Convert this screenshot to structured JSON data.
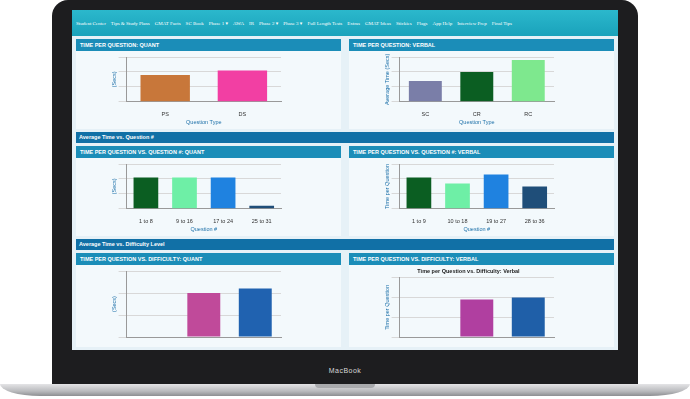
{
  "device": "MacBook",
  "nav": [
    "Student Center",
    "Tips & Study Plans",
    "GMAT Facts",
    "SC Book",
    "Phase 1 ▾",
    "AWA",
    "IR",
    "Phase 2 ▾",
    "Phase 3 ▾",
    "Full Length Tests",
    "Extras",
    "GMAT Ideas",
    "Stickies",
    "Flags",
    "App Help",
    "Interview Prep",
    "Final Tips"
  ],
  "sections": [
    "Average Time vs. Question #",
    "Average Time vs. Difficulty Level"
  ],
  "chart_data": [
    {
      "type": "bar",
      "title": "TIME PER QUESTION: QUANT",
      "x_label": "Question Type",
      "y_label": "(Secs)",
      "categories": [
        "PS",
        "DS"
      ],
      "values": [
        90,
        105
      ],
      "colors": [
        "#c8773a",
        "#f23fa3"
      ],
      "ylim": [
        0,
        150
      ],
      "yticks": [
        0,
        50,
        100,
        150
      ],
      "grid": true,
      "tick_labels": "x"
    },
    {
      "type": "bar",
      "title": "TIME PER QUESTION: VERBAL",
      "x_label": "Question Type",
      "y_label": "Average Time (Secs)",
      "categories": [
        "SC",
        "CR",
        "RC"
      ],
      "values": [
        70,
        100,
        140
      ],
      "colors": [
        "#7a7ea8",
        "#0b5e22",
        "#7ee88e"
      ],
      "ylim": [
        0,
        150
      ],
      "yticks": [
        0,
        50,
        100,
        150
      ],
      "grid": true,
      "tick_labels": "x"
    },
    {
      "type": "bar",
      "title": "TIME PER QUESTION VS. QUESTION #: QUANT",
      "x_label": "Question #",
      "y_label": "(Secs)",
      "categories": [
        "1 to 8",
        "9 to 16",
        "17 to 24",
        "25 to 31"
      ],
      "values": [
        105,
        105,
        105,
        10
      ],
      "colors": [
        "#0b5e22",
        "#6eefa6",
        "#1f82e0",
        "#1f4e79"
      ],
      "ylim": [
        0,
        150
      ],
      "yticks": [
        0,
        50,
        100,
        150
      ],
      "grid": true,
      "tick_labels": "x"
    },
    {
      "type": "bar",
      "title": "TIME PER QUESTION VS. QUESTION #: VERBAL",
      "x_label": "Question #",
      "y_label": "Time per Question",
      "categories": [
        "1 to 9",
        "10 to 18",
        "19 to 27",
        "28 to 36"
      ],
      "values": [
        105,
        85,
        115,
        75
      ],
      "colors": [
        "#0b5e22",
        "#6eefa6",
        "#1f82e0",
        "#1f4e79"
      ],
      "ylim": [
        0,
        150
      ],
      "yticks": [
        0,
        50,
        100,
        150
      ],
      "grid": true,
      "tick_labels": "x"
    },
    {
      "type": "bar",
      "title": "TIME PER QUESTION VS. DIFFICULTY: QUANT",
      "y_label": "(Secs)",
      "categories": [
        null,
        null,
        null
      ],
      "values": [
        null,
        100,
        110
      ],
      "colors": [
        "#c04a9a",
        "#c04a9a",
        "#2062b0"
      ],
      "ylim": [
        0,
        150
      ],
      "yticks": [
        0,
        50,
        100,
        150
      ],
      "grid": true,
      "tick_labels": false
    },
    {
      "type": "bar",
      "title": "TIME PER QUESTION VS. DIFFICULTY: VERBAL",
      "subtitle": "Time per Question vs. Difficulty: Verbal",
      "y_label": "Time per Question",
      "categories": [
        null,
        null,
        null
      ],
      "values": [
        null,
        95,
        100
      ],
      "colors": [
        "#b03fa0",
        "#b03fa0",
        "#1f5fa8"
      ],
      "ylim": [
        0,
        150
      ],
      "yticks": [
        0,
        50,
        100,
        150
      ],
      "grid": true,
      "tick_labels": false
    }
  ]
}
